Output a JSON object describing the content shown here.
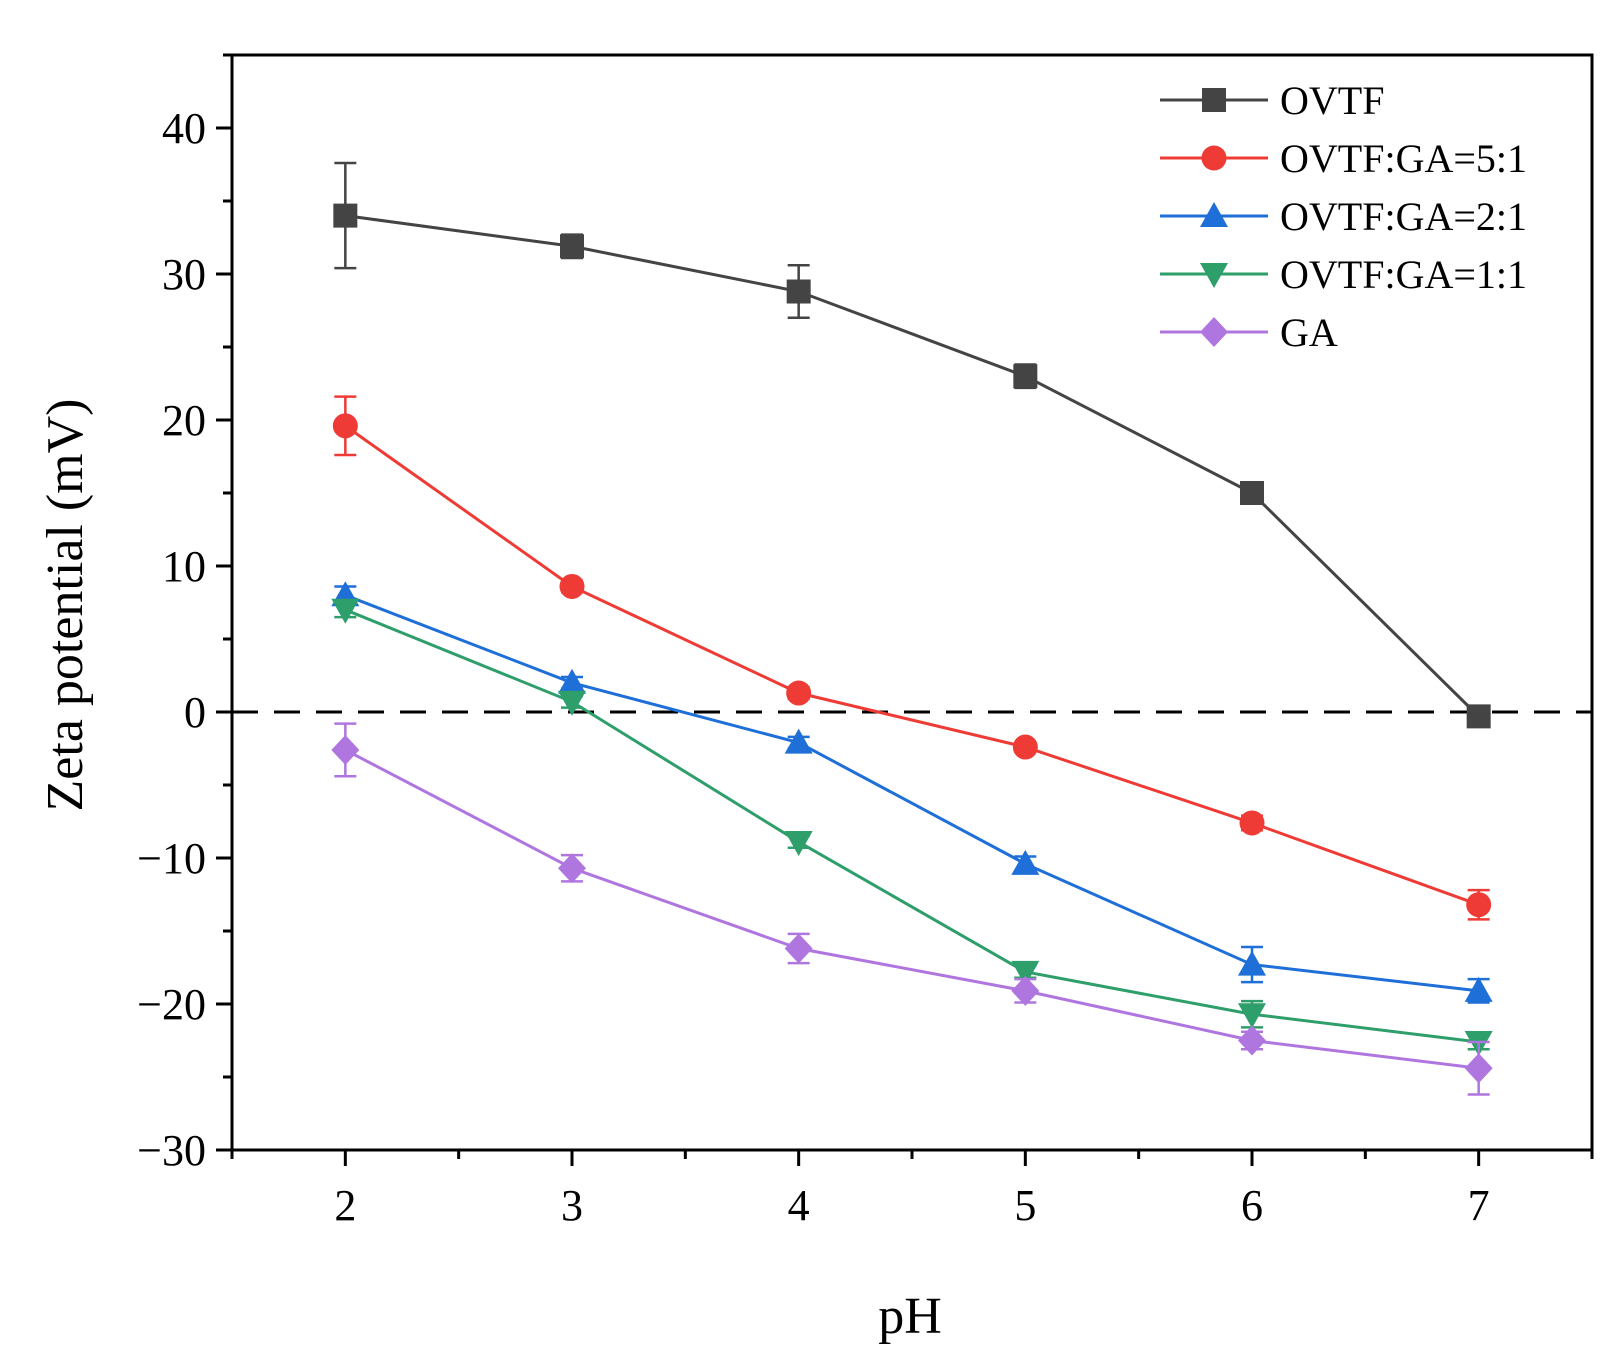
{
  "chart_data": {
    "type": "line",
    "xlabel": "pH",
    "ylabel": "Zeta potential (mV)",
    "xlim": [
      1.5,
      7.5
    ],
    "ylim": [
      -30,
      45
    ],
    "x": [
      2,
      3,
      4,
      5,
      6,
      7
    ],
    "xticks": [
      "2",
      "3",
      "4",
      "5",
      "6",
      "7"
    ],
    "yticks": [
      "−30",
      "−20",
      "−10",
      "0",
      "10",
      "20",
      "30",
      "40"
    ],
    "ytick_values": [
      -30,
      -20,
      -10,
      0,
      10,
      20,
      30,
      40
    ],
    "reference_line": {
      "y": 0,
      "style": "dashed"
    },
    "legend_position": "top-right",
    "series": [
      {
        "name": "OVTF",
        "color": "#444444",
        "marker": "square",
        "values": [
          34.0,
          31.9,
          28.8,
          23.0,
          15.0,
          -0.3
        ],
        "errors": [
          3.6,
          0.8,
          1.8,
          0.8,
          0.4,
          0.4
        ]
      },
      {
        "name": "OVTF:GA=5:1",
        "color": "#ef3b35",
        "marker": "circle",
        "values": [
          19.6,
          8.6,
          1.3,
          -2.4,
          -7.6,
          -13.2
        ],
        "errors": [
          2.0,
          0.4,
          0.4,
          0.3,
          0.5,
          1.0
        ]
      },
      {
        "name": "OVTF:GA=2:1",
        "color": "#1f6fd8",
        "marker": "triangle-up",
        "values": [
          8.0,
          2.0,
          -2.1,
          -10.4,
          -17.3,
          -19.1
        ],
        "errors": [
          0.6,
          0.4,
          0.4,
          0.5,
          1.2,
          0.8
        ]
      },
      {
        "name": "OVTF:GA=1:1",
        "color": "#2e9e6a",
        "marker": "triangle-down",
        "values": [
          7.0,
          0.7,
          -8.9,
          -17.8,
          -20.7,
          -22.6
        ],
        "errors": [
          0.5,
          0.4,
          0.4,
          0.4,
          0.9,
          0.5
        ]
      },
      {
        "name": "GA",
        "color": "#b076e0",
        "marker": "diamond",
        "values": [
          -2.6,
          -10.7,
          -16.2,
          -19.1,
          -22.5,
          -24.4
        ],
        "errors": [
          1.8,
          0.9,
          1.0,
          0.8,
          0.6,
          1.8
        ]
      }
    ]
  }
}
